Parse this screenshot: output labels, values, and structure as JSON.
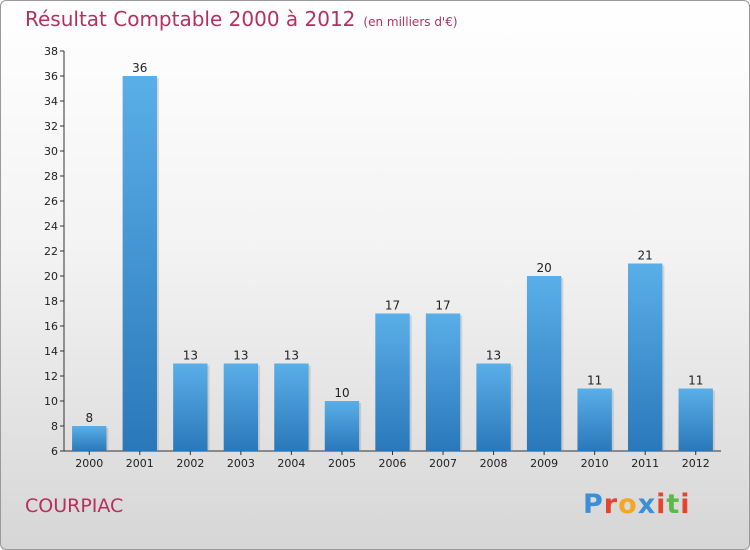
{
  "title": "Résultat Comptable 2000 à 2012",
  "subtitle": "(en milliers d'€)",
  "commune": "COURPIAC",
  "logo": {
    "text": "Proxiti",
    "colors": [
      "#3b8fd6",
      "#e5442f",
      "#f5a623",
      "#3b8fd6",
      "#e5442f",
      "#5cb84a",
      "#e5442f"
    ]
  },
  "colors": {
    "bar_top": "#5aafe8",
    "bar_bottom": "#2a78ba",
    "title": "#b5305c"
  },
  "chart_data": {
    "type": "bar",
    "title": "Résultat Comptable 2000 à 2012",
    "subtitle": "(en milliers d'€)",
    "categories": [
      "2000",
      "2001",
      "2002",
      "2003",
      "2004",
      "2005",
      "2006",
      "2007",
      "2008",
      "2009",
      "2010",
      "2011",
      "2012"
    ],
    "values": [
      8,
      36,
      13,
      13,
      13,
      10,
      17,
      17,
      13,
      20,
      11,
      21,
      11
    ],
    "ylim": [
      6,
      38
    ],
    "yticks": [
      6,
      8,
      10,
      12,
      14,
      16,
      18,
      20,
      22,
      24,
      26,
      28,
      30,
      32,
      34,
      36,
      38
    ],
    "grid": false,
    "legend": "none"
  }
}
